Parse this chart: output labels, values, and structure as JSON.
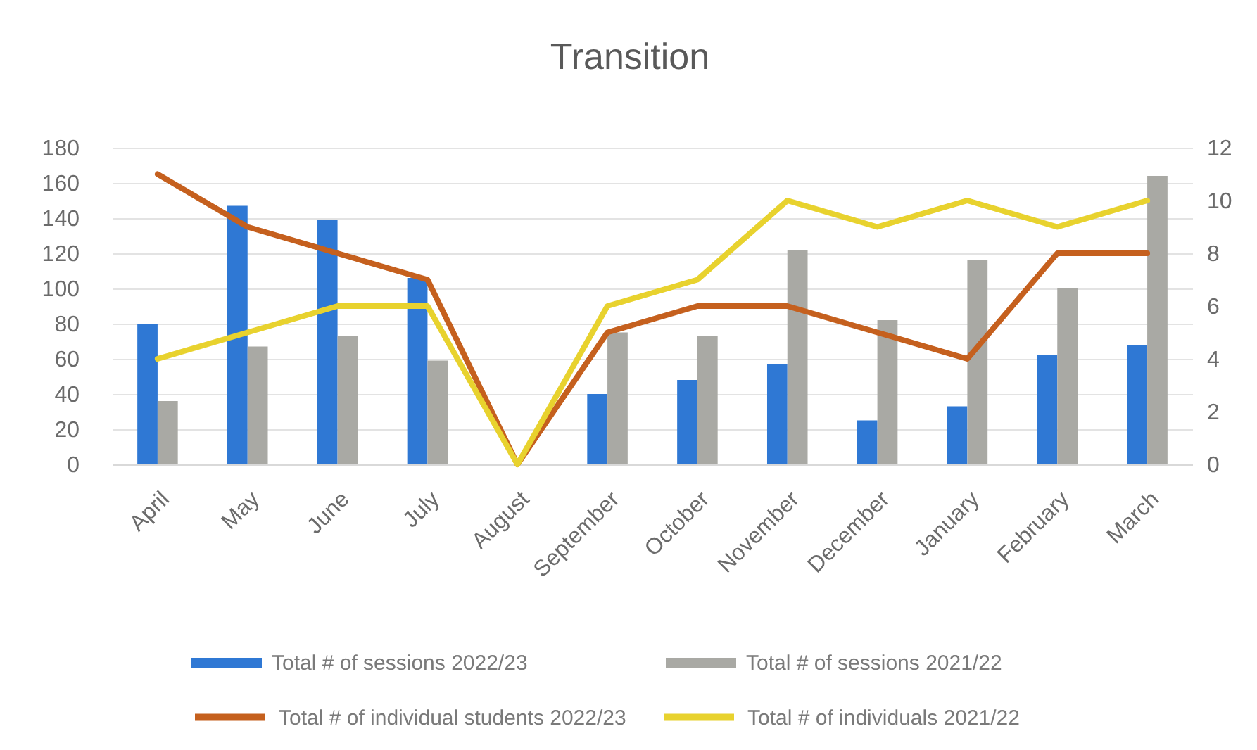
{
  "chart_data": {
    "type": "bar",
    "title": "Transition",
    "categories": [
      "April",
      "May",
      "June",
      "July",
      "August",
      "September",
      "October",
      "November",
      "December",
      "January",
      "February",
      "March"
    ],
    "series": [
      {
        "name": "Total # of sessions 2022/23",
        "color": "#2f78d4",
        "values": [
          80,
          147,
          139,
          106,
          0,
          40,
          48,
          57,
          25,
          33,
          62,
          68
        ]
      },
      {
        "name": "Total # of sessions 2021/22",
        "color": "#a9a9a4",
        "values": [
          36,
          67,
          73,
          59,
          0,
          75,
          73,
          122,
          82,
          116,
          100,
          164
        ]
      },
      {
        "name": "Total # of individual students 2022/23",
        "type": "line",
        "axis": "y2",
        "color": "#c5601e",
        "values": [
          11,
          9,
          8,
          7,
          0,
          5,
          6,
          6,
          5,
          4,
          8,
          8
        ]
      },
      {
        "name": "Total # of individuals 2021/22",
        "type": "line",
        "axis": "y2",
        "color": "#e8d22e",
        "values": [
          4,
          5,
          6,
          6,
          0,
          6,
          7,
          10,
          9,
          10,
          9,
          10
        ]
      }
    ],
    "ylim": [
      0,
      180
    ],
    "yticks": [
      0,
      20,
      40,
      60,
      80,
      100,
      120,
      140,
      160,
      180
    ],
    "y2lim": [
      0,
      12
    ],
    "y2ticks": [
      0,
      2,
      4,
      6,
      8,
      10,
      12
    ],
    "grid": "y",
    "legend": "bottom"
  }
}
